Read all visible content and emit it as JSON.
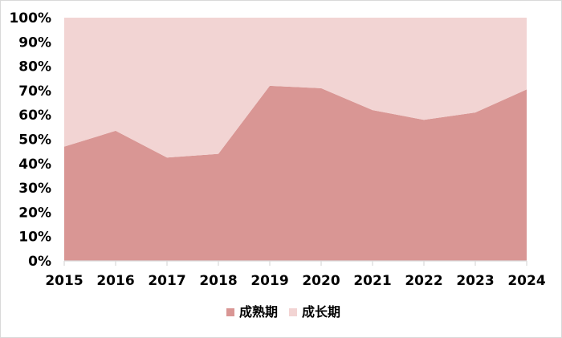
{
  "chart_data": {
    "type": "area",
    "stacked_percent": true,
    "x": [
      "2015",
      "2016",
      "2017",
      "2018",
      "2019",
      "2020",
      "2021",
      "2022",
      "2023",
      "2024"
    ],
    "series": [
      {
        "name": "成熟期",
        "color": "#d99694",
        "values": [
          47,
          53.5,
          42.5,
          44,
          72,
          71,
          62,
          58,
          61,
          70.5
        ]
      },
      {
        "name": "成长期",
        "color": "#f2d4d3",
        "values": [
          53,
          46.5,
          57.5,
          56,
          28,
          29,
          38,
          42,
          39,
          29.5
        ]
      }
    ],
    "y_ticks": [
      "0%",
      "10%",
      "20%",
      "30%",
      "40%",
      "50%",
      "60%",
      "70%",
      "80%",
      "90%",
      "100%"
    ],
    "ylim": [
      0,
      100
    ],
    "grid": false,
    "legend_position": "bottom"
  }
}
